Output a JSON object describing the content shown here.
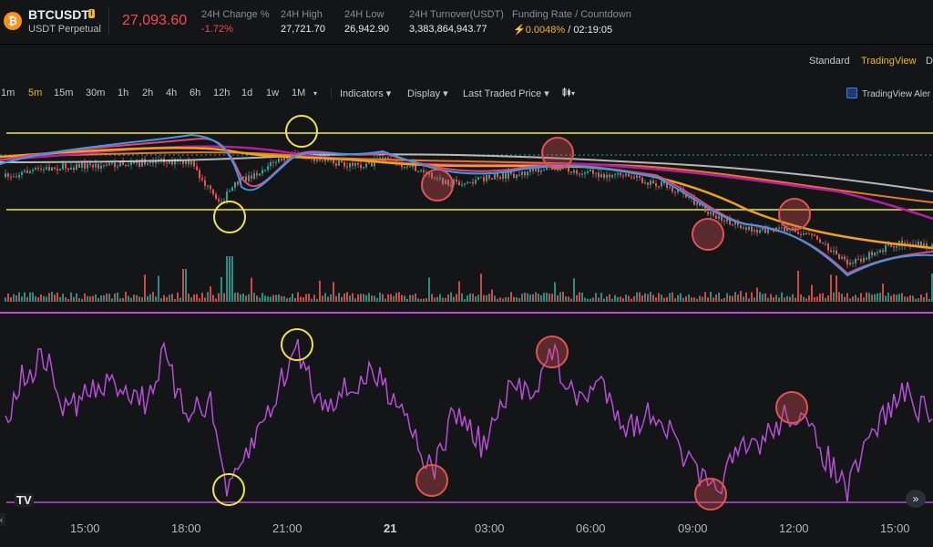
{
  "header": {
    "coin_icon": "bitcoin-icon",
    "symbol": "BTCUSDT",
    "contract_type": "USDT Perpetual",
    "last_price": "27,093.60",
    "change_label": "24H Change %",
    "change_value": "-1.72%",
    "high_label": "24H High",
    "high_value": "27,721.70",
    "low_label": "24H Low",
    "low_value": "26,942.90",
    "turnover_label": "24H Turnover(USDT)",
    "turnover_value": "3,383,864,943.77",
    "funding_label": "Funding Rate / Countdown",
    "funding_value": "0.0048%",
    "countdown_value": "/ 02:19:05"
  },
  "views": {
    "standard": "Standard",
    "tradingview": "TradingView",
    "depth": "De"
  },
  "toolbar": {
    "intervals": [
      "1m",
      "5m",
      "15m",
      "30m",
      "1h",
      "2h",
      "4h",
      "6h",
      "12h",
      "1d",
      "1w",
      "1M"
    ],
    "active_interval": "5m",
    "more_intervals": "▾",
    "indicators": "Indicators ▾",
    "display": "Display ▾",
    "price_source": "Last Traded Price ▾",
    "candle_type": "▾",
    "alert": "TradingView Aler"
  },
  "x_axis": {
    "labels": [
      "15:00",
      "18:00",
      "21:00",
      "21",
      "03:00",
      "06:00",
      "09:00",
      "12:00",
      "15:00"
    ]
  },
  "chart_data": [
    {
      "type": "line",
      "description_series": "price with moving averages",
      "x": [
        0,
        30,
        60,
        90,
        120,
        150,
        180,
        210,
        240,
        260,
        280,
        300,
        330,
        360,
        390,
        420,
        450,
        480,
        510,
        540,
        570,
        600,
        630,
        660,
        690,
        720,
        750,
        780,
        810,
        840,
        870,
        900,
        930,
        960,
        990,
        1020
      ],
      "price": [
        0.5,
        0.42,
        0.38,
        0.36,
        0.35,
        0.33,
        0.3,
        0.34,
        0.78,
        0.55,
        0.45,
        0.32,
        0.22,
        0.32,
        0.36,
        0.3,
        0.35,
        0.52,
        0.55,
        0.48,
        0.45,
        0.38,
        0.42,
        0.45,
        0.48,
        0.55,
        0.65,
        0.9,
        1.0,
        1.08,
        1.05,
        1.18,
        1.45,
        1.3,
        1.2,
        1.25
      ],
      "horizontal_levels": [
        0,
        0.85
      ],
      "markers": [
        {
          "kind": "resistance-touch",
          "color": "#f0e442",
          "x": 330,
          "y": 0.0
        },
        {
          "kind": "support-touch",
          "color": "#f0e442",
          "x": 251,
          "y": 0.85
        },
        {
          "kind": "reversal",
          "color": "#e05454",
          "x": 480,
          "y": 0.5
        },
        {
          "kind": "reversal",
          "color": "#e05454",
          "x": 612,
          "y": 0.18
        },
        {
          "kind": "reversal",
          "color": "#e05454",
          "x": 777,
          "y": 1.0
        },
        {
          "kind": "reversal",
          "color": "#e05454",
          "x": 872,
          "y": 0.8
        }
      ]
    },
    {
      "type": "line",
      "description_series": "oscillator",
      "markers": [
        {
          "kind": "overbought",
          "color": "#f0e442",
          "x": 326
        },
        {
          "kind": "oversold",
          "color": "#f0e442",
          "x": 251
        },
        {
          "kind": "divergence",
          "color": "#e05454",
          "x": 474
        },
        {
          "kind": "divergence",
          "color": "#e05454",
          "x": 606
        },
        {
          "kind": "divergence",
          "color": "#e05454",
          "x": 780
        },
        {
          "kind": "divergence",
          "color": "#e05454",
          "x": 869
        }
      ]
    }
  ],
  "colors": {
    "background": "#141517",
    "up": "#26a69a",
    "down": "#ef5350",
    "level_line": "#f0e442",
    "oscillator": "#b44fd6",
    "accent": "#f0b90b"
  },
  "watermark": "TV",
  "nav": {
    "forward": "»",
    "left": "‹"
  }
}
